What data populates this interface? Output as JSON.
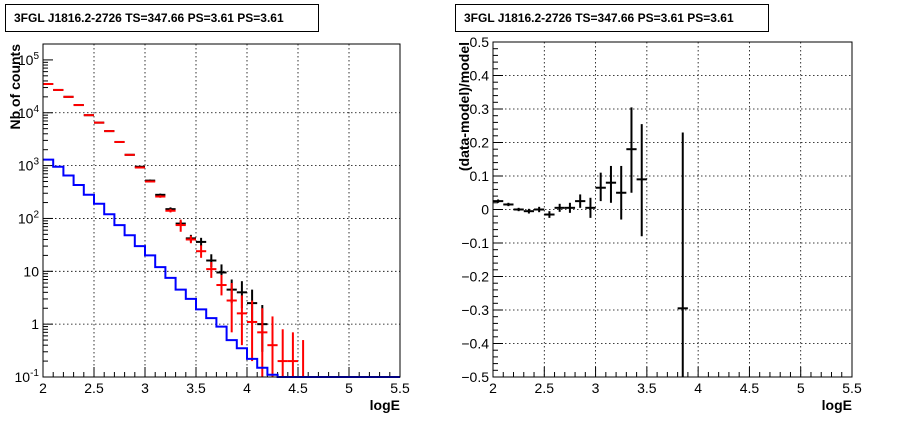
{
  "chart_data": [
    {
      "type": "line",
      "title": "3FGL J1816.2-2726 TS=347.66 PS=3.61 PS=3.61",
      "xlabel": "logE",
      "ylabel": "Nb of counts",
      "y_scale": "log",
      "xlim": [
        2,
        5.5
      ],
      "ylim": [
        0.1,
        200000
      ],
      "grid": true,
      "x_ticks": [
        "2",
        "2.5",
        "3",
        "3.5",
        "4",
        "4.5",
        "5",
        "5.5"
      ],
      "y_ticks": [
        "10^-1",
        "1",
        "10",
        "10^2",
        "10^3",
        "10^4",
        "10^5"
      ],
      "y_tick_values": [
        0.1,
        1,
        10,
        100,
        1000,
        10000,
        100000
      ],
      "series": [
        {
          "color": "#000000",
          "style": "errorbar",
          "points": [
            {
              "x": 2.05,
              "y": 35000,
              "lo": 34800,
              "hi": 35200
            },
            {
              "x": 2.15,
              "y": 27000,
              "lo": 26800,
              "hi": 27200
            },
            {
              "x": 2.25,
              "y": 20000,
              "lo": 19800,
              "hi": 20200
            },
            {
              "x": 2.35,
              "y": 14000,
              "lo": 13850,
              "hi": 14150
            },
            {
              "x": 2.45,
              "y": 9000,
              "lo": 8900,
              "hi": 9100
            },
            {
              "x": 2.55,
              "y": 6500,
              "lo": 6400,
              "hi": 6600
            },
            {
              "x": 2.65,
              "y": 4500,
              "lo": 4430,
              "hi": 4570
            },
            {
              "x": 2.75,
              "y": 2800,
              "lo": 2750,
              "hi": 2850
            },
            {
              "x": 2.85,
              "y": 1600,
              "lo": 1560,
              "hi": 1640
            },
            {
              "x": 2.95,
              "y": 950,
              "lo": 920,
              "hi": 980
            },
            {
              "x": 3.05,
              "y": 520,
              "lo": 500,
              "hi": 545
            },
            {
              "x": 3.15,
              "y": 280,
              "lo": 265,
              "hi": 295
            },
            {
              "x": 3.25,
              "y": 150,
              "lo": 140,
              "hi": 162
            },
            {
              "x": 3.35,
              "y": 80,
              "lo": 72,
              "hi": 89
            },
            {
              "x": 3.45,
              "y": 42,
              "lo": 36,
              "hi": 49
            },
            {
              "x": 3.55,
              "y": 36,
              "lo": 30,
              "hi": 43
            },
            {
              "x": 3.65,
              "y": 16,
              "lo": 12,
              "hi": 21
            },
            {
              "x": 3.75,
              "y": 9.5,
              "lo": 6.5,
              "hi": 13.5
            },
            {
              "x": 3.85,
              "y": 4.5,
              "lo": 2.5,
              "hi": 7
            },
            {
              "x": 3.95,
              "y": 4,
              "lo": 2,
              "hi": 6.5
            },
            {
              "x": 4.05,
              "y": 2.5,
              "lo": 1,
              "hi": 4.5
            },
            {
              "x": 4.15,
              "y": 1,
              "lo": 0.3,
              "hi": 2.3
            }
          ]
        },
        {
          "color": "#ff0000",
          "style": "errorbar",
          "points": [
            {
              "x": 2.05,
              "y": 35000,
              "lo": 34800,
              "hi": 35200
            },
            {
              "x": 2.15,
              "y": 27000,
              "lo": 26800,
              "hi": 27200
            },
            {
              "x": 2.25,
              "y": 20000,
              "lo": 19800,
              "hi": 20200
            },
            {
              "x": 2.35,
              "y": 14000,
              "lo": 13850,
              "hi": 14150
            },
            {
              "x": 2.45,
              "y": 9000,
              "lo": 8900,
              "hi": 9100
            },
            {
              "x": 2.55,
              "y": 6500,
              "lo": 6400,
              "hi": 6600
            },
            {
              "x": 2.65,
              "y": 4500,
              "lo": 4430,
              "hi": 4570
            },
            {
              "x": 2.75,
              "y": 2800,
              "lo": 2750,
              "hi": 2850
            },
            {
              "x": 2.85,
              "y": 1600,
              "lo": 1560,
              "hi": 1640
            },
            {
              "x": 2.95,
              "y": 920,
              "lo": 890,
              "hi": 950
            },
            {
              "x": 3.05,
              "y": 500,
              "lo": 480,
              "hi": 522
            },
            {
              "x": 3.15,
              "y": 260,
              "lo": 246,
              "hi": 275
            },
            {
              "x": 3.25,
              "y": 140,
              "lo": 130,
              "hi": 152
            },
            {
              "x": 3.35,
              "y": 75,
              "lo": 56,
              "hi": 95
            },
            {
              "x": 3.45,
              "y": 40,
              "lo": 34,
              "hi": 47
            },
            {
              "x": 3.55,
              "y": 24,
              "lo": 18,
              "hi": 31
            },
            {
              "x": 3.65,
              "y": 11,
              "lo": 7.5,
              "hi": 15
            },
            {
              "x": 3.75,
              "y": 5.5,
              "lo": 3.5,
              "hi": 8.5
            },
            {
              "x": 3.85,
              "y": 2.8,
              "lo": 0.7,
              "hi": 6
            },
            {
              "x": 3.95,
              "y": 1.6,
              "lo": 0.4,
              "hi": 3.5
            },
            {
              "x": 4.05,
              "y": 1.1,
              "lo": 0.2,
              "hi": 2.8
            },
            {
              "x": 4.15,
              "y": 0.7,
              "lo": 0.1,
              "hi": 2
            },
            {
              "x": 4.25,
              "y": 0.4,
              "lo": 0.1,
              "hi": 1.4
            },
            {
              "x": 4.35,
              "y": 0.2,
              "lo": 0.1,
              "hi": 0.8
            },
            {
              "x": 4.45,
              "y": 0.2,
              "lo": 0.1,
              "hi": 0.7
            },
            {
              "x": 4.55,
              "y": 0.1,
              "lo": 0.1,
              "hi": 0.5
            }
          ]
        },
        {
          "color": "#0000ff",
          "style": "step",
          "bin_edges": [
            2.0,
            2.1,
            2.2,
            2.3,
            2.4,
            2.5,
            2.6,
            2.7,
            2.8,
            2.9,
            3.0,
            3.1,
            3.2,
            3.3,
            3.4,
            3.5,
            3.6,
            3.7,
            3.8,
            3.9,
            4.0,
            4.1,
            4.2,
            4.3,
            4.4,
            4.5,
            4.6,
            4.7,
            4.8,
            4.9,
            5.0,
            5.1,
            5.2,
            5.3,
            5.4,
            5.5
          ],
          "values": [
            1300,
            950,
            650,
            430,
            280,
            190,
            120,
            75,
            48,
            30,
            20,
            12,
            7.5,
            4.5,
            3,
            1.9,
            1.3,
            0.9,
            0.5,
            0.35,
            0.22,
            0.15,
            0.11,
            0.1,
            0.1,
            0.1,
            0.1,
            0.1,
            0.1,
            0.1,
            0.1,
            0.1,
            0.1,
            0.1,
            0.1
          ]
        }
      ]
    },
    {
      "type": "scatter",
      "title": "3FGL J1816.2-2726 TS=347.66 PS=3.61 PS=3.61",
      "xlabel": "logE",
      "ylabel": "(data-model)/model",
      "xlim": [
        2,
        5.5
      ],
      "ylim": [
        -0.5,
        0.5
      ],
      "grid": true,
      "x_ticks": [
        "2",
        "2.5",
        "3",
        "3.5",
        "4",
        "4.5",
        "5",
        "5.5"
      ],
      "y_ticks": [
        "−0.5",
        "−0.4",
        "−0.3",
        "−0.2",
        "−0.1",
        "0",
        "0.1",
        "0.2",
        "0.3",
        "0.4",
        "0.5"
      ],
      "y_tick_values": [
        -0.5,
        -0.4,
        -0.3,
        -0.2,
        -0.1,
        0,
        0.1,
        0.2,
        0.3,
        0.4,
        0.5
      ],
      "series": [
        {
          "color": "#000000",
          "style": "errorbar",
          "points": [
            {
              "x": 2.05,
              "y": 0.025,
              "lo": 0.02,
              "hi": 0.03
            },
            {
              "x": 2.15,
              "y": 0.015,
              "lo": 0.01,
              "hi": 0.02
            },
            {
              "x": 2.25,
              "y": 0.0,
              "lo": -0.005,
              "hi": 0.005
            },
            {
              "x": 2.35,
              "y": -0.005,
              "lo": -0.012,
              "hi": 0.002
            },
            {
              "x": 2.45,
              "y": 0.0,
              "lo": -0.008,
              "hi": 0.008
            },
            {
              "x": 2.55,
              "y": -0.015,
              "lo": -0.025,
              "hi": -0.005
            },
            {
              "x": 2.65,
              "y": 0.005,
              "lo": -0.007,
              "hi": 0.017
            },
            {
              "x": 2.75,
              "y": 0.005,
              "lo": -0.01,
              "hi": 0.02
            },
            {
              "x": 2.85,
              "y": 0.025,
              "lo": 0.005,
              "hi": 0.045
            },
            {
              "x": 2.95,
              "y": 0.005,
              "lo": -0.025,
              "hi": 0.035
            },
            {
              "x": 3.05,
              "y": 0.065,
              "lo": 0.025,
              "hi": 0.11
            },
            {
              "x": 3.15,
              "y": 0.08,
              "lo": 0.02,
              "hi": 0.13
            },
            {
              "x": 3.25,
              "y": 0.05,
              "lo": -0.03,
              "hi": 0.13
            },
            {
              "x": 3.35,
              "y": 0.18,
              "lo": 0.05,
              "hi": 0.305
            },
            {
              "x": 3.45,
              "y": 0.09,
              "lo": -0.08,
              "hi": 0.255
            },
            {
              "x": 3.85,
              "y": -0.295,
              "lo": -0.5,
              "hi": 0.23
            }
          ]
        }
      ]
    }
  ]
}
